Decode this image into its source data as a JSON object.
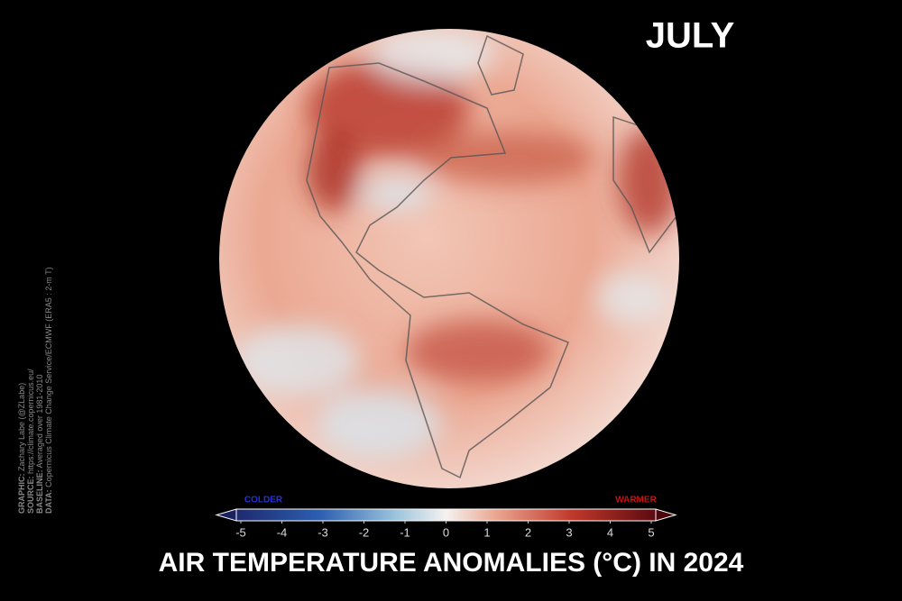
{
  "month": "JULY",
  "title": "AIR TEMPERATURE ANOMALIES (°C) IN 2024",
  "colorbar": {
    "lim": [
      -5,
      5
    ],
    "ticks": [
      -5,
      -4,
      -3,
      -2,
      -1,
      0,
      1,
      2,
      3,
      4,
      5
    ],
    "low_label": "COLDER",
    "high_label": "WARMER"
  },
  "credits": [
    {
      "label": "GRAPHIC:",
      "text": "Zachary Labe (@ZLabe)"
    },
    {
      "label": "SOURCE:",
      "text": "https://climate.copernicus.eu/"
    },
    {
      "label": "BASELINE:",
      "text": "Averaged over 1981-2010"
    },
    {
      "label": "DATA:",
      "text": "Copernicus Climate Change Service/ECMWF (ERA5 : 2-m T)"
    }
  ]
}
